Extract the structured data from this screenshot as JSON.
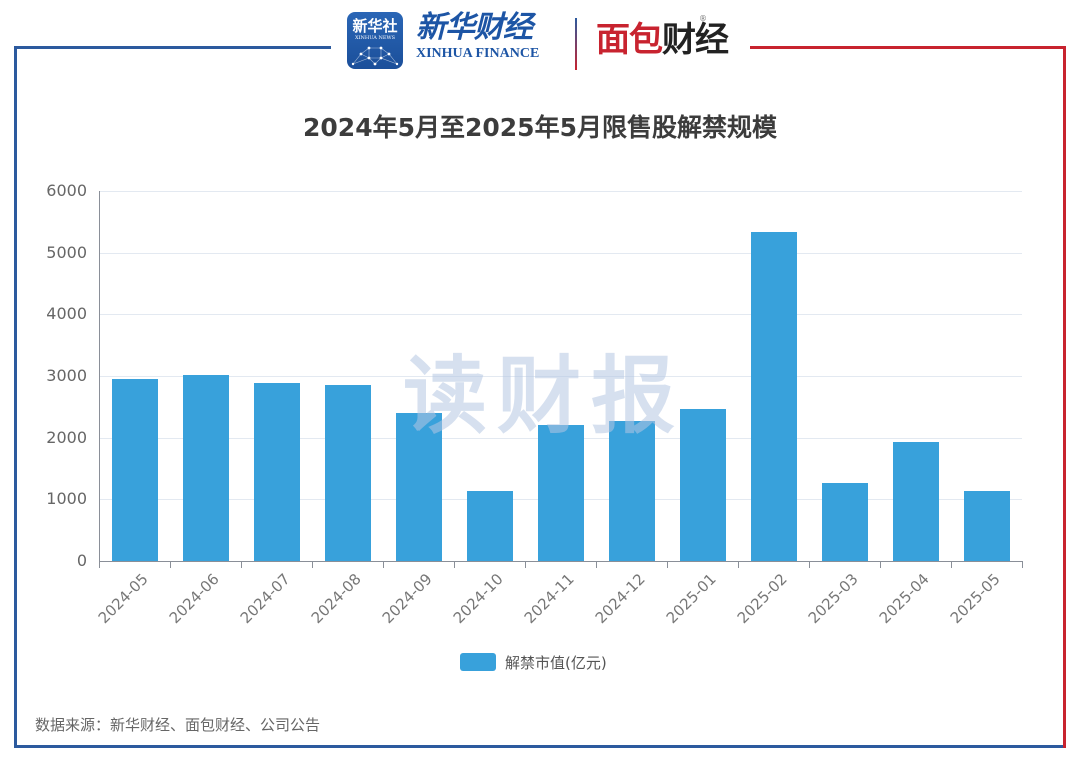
{
  "header": {
    "logo_xinhua_cn": "新华社",
    "logo_xinhua_en": "XINHUA NEWS",
    "logo_finance_cn": "新华财经",
    "logo_finance_en": "XINHUA FINANCE",
    "logo_mianbao_red": "面包",
    "logo_mianbao_dark": "财经",
    "registered_mark": "®"
  },
  "colors": {
    "bar": "#38a1db",
    "frame_blue": "#2c5a9e",
    "frame_red": "#c8232f",
    "title": "#3c3c3c"
  },
  "watermark": "读财报",
  "chart_data": {
    "type": "bar",
    "title": "2024年5月至2025年5月限售股解禁规模",
    "xlabel": "",
    "ylabel": "",
    "categories": [
      "2024-05",
      "2024-06",
      "2024-07",
      "2024-08",
      "2024-09",
      "2024-10",
      "2024-11",
      "2024-12",
      "2025-01",
      "2025-02",
      "2025-03",
      "2025-04",
      "2025-05"
    ],
    "series": [
      {
        "name": "解禁市值(亿元)",
        "values": [
          2950,
          3010,
          2880,
          2850,
          2400,
          1130,
          2200,
          2270,
          2460,
          5340,
          1260,
          1930,
          1130
        ]
      }
    ],
    "ylim": [
      0,
      6000
    ],
    "yticks": [
      "0",
      "1000",
      "2000",
      "3000",
      "4000",
      "5000",
      "6000"
    ],
    "grid": true,
    "legend_position": "bottom"
  },
  "legend": {
    "label": "解禁市值(亿元)"
  },
  "footer": {
    "source": "数据来源：新华财经、面包财经、公司公告"
  }
}
